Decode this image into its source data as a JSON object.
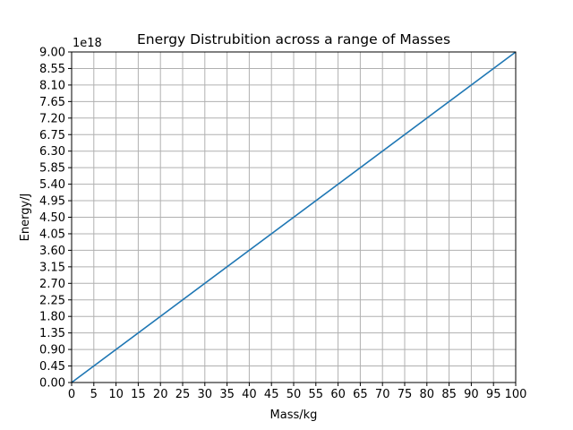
{
  "chart_data": {
    "type": "line",
    "title": "Energy Distrubition across a range of Masses",
    "xlabel": "Mass/kg",
    "ylabel": "Energy/J",
    "y_offset_label": "1e18",
    "xlim": [
      0,
      100
    ],
    "ylim": [
      0,
      9.0
    ],
    "y_scale_factor": 1e+18,
    "x_ticks": [
      "0",
      "5",
      "10",
      "15",
      "20",
      "25",
      "30",
      "35",
      "40",
      "45",
      "50",
      "55",
      "60",
      "65",
      "70",
      "75",
      "80",
      "85",
      "90",
      "95",
      "100"
    ],
    "y_ticks": [
      "0.00",
      "0.45",
      "0.90",
      "1.35",
      "1.80",
      "2.25",
      "2.70",
      "3.15",
      "3.60",
      "4.05",
      "4.50",
      "4.95",
      "5.40",
      "5.85",
      "6.30",
      "6.75",
      "7.20",
      "7.65",
      "8.10",
      "8.55",
      "9.00"
    ],
    "grid": true,
    "series": [
      {
        "color": "#1f77b4",
        "x": [
          0,
          100
        ],
        "y": [
          0,
          9.0
        ]
      }
    ]
  }
}
